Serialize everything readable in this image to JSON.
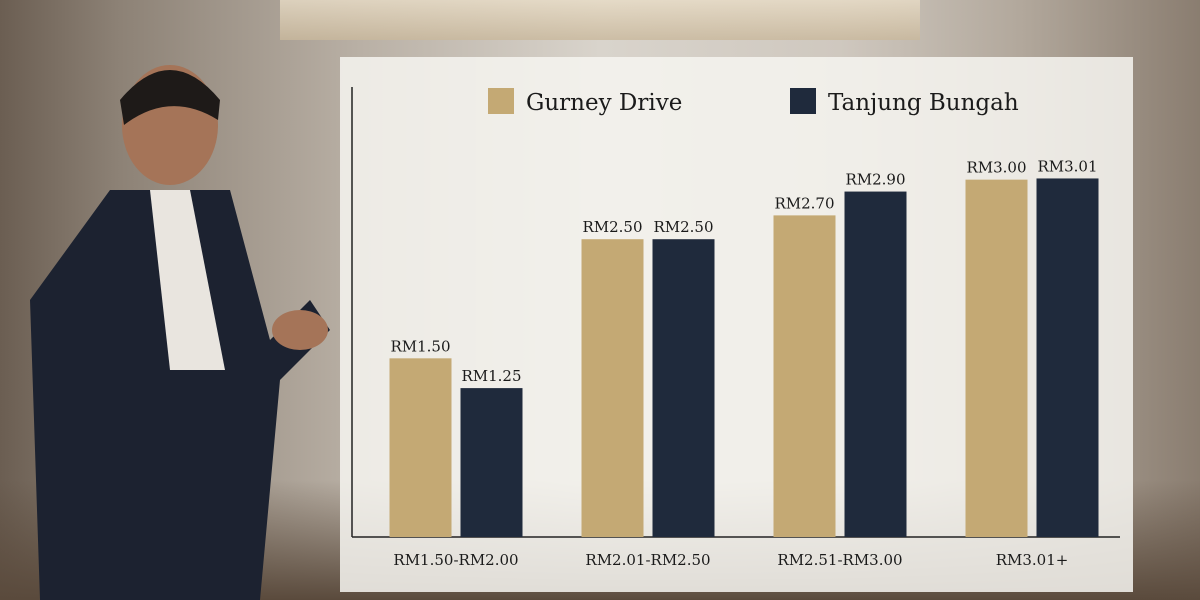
{
  "chart_data": {
    "type": "bar",
    "categories": [
      "RM1.50-RM2.00",
      "RM2.01-RM2.50",
      "RM2.51-RM3.00",
      "RM3.01+"
    ],
    "series": [
      {
        "name": "Gurney Drive",
        "color": "#c4a974",
        "values": [
          1.5,
          2.5,
          2.7,
          3.0
        ],
        "labels": [
          "RM1.50",
          "RM2.50",
          "RM2.70",
          "RM3.00"
        ]
      },
      {
        "name": "Tanjung Bungah",
        "color": "#1f2a3c",
        "values": [
          1.25,
          2.5,
          2.9,
          3.01
        ],
        "labels": [
          "RM1.25",
          "RM2.50",
          "RM2.90",
          "RM3.01"
        ]
      }
    ],
    "title": "",
    "xlabel": "",
    "ylabel": "",
    "ylim": [
      0,
      3.4
    ],
    "grid": false,
    "legend": "top"
  }
}
